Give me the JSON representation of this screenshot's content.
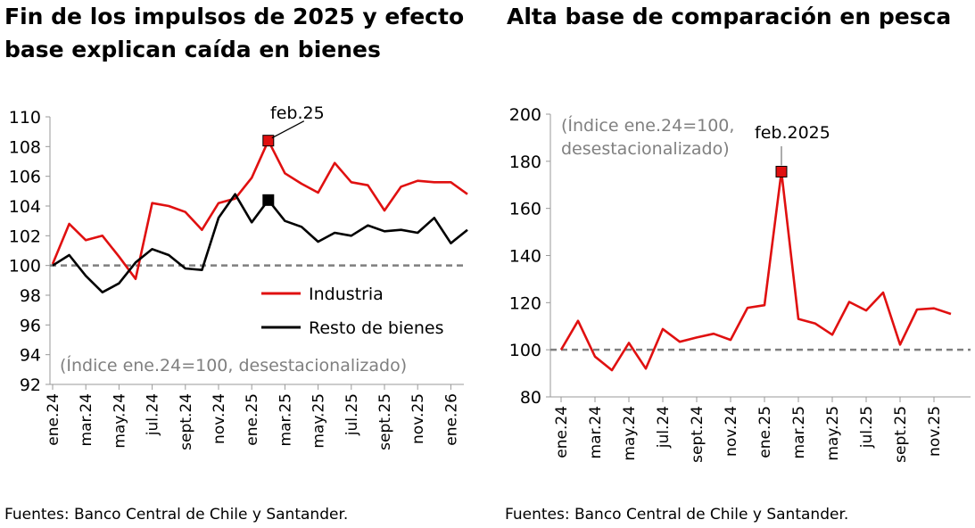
{
  "left": {
    "title": "Fin de los impulsos de 2025 y efecto base explican caída en bienes",
    "source": "Fuentes: Banco Central de Chile y Santander."
  },
  "right": {
    "title": "Alta base de comparación en pesca",
    "source": "Fuentes: Banco Central de Chile y Santander."
  },
  "chart_data": [
    {
      "type": "line",
      "title": "Fin de los impulsos de 2025 y efecto base explican caída en bienes",
      "note": "(Índice ene.24=100, desestacionalizado)",
      "ylim": [
        92,
        110
      ],
      "yticks": [
        92,
        94,
        96,
        98,
        100,
        102,
        104,
        106,
        108,
        110
      ],
      "x": [
        "ene.24",
        "feb.24",
        "mar.24",
        "abr.24",
        "may.24",
        "jun.24",
        "jul.24",
        "ago.24",
        "sept.24",
        "oct.24",
        "nov.24",
        "dic.24",
        "ene.25",
        "feb.25",
        "mar.25",
        "abr.25",
        "may.25",
        "jun.25",
        "jul.25",
        "ago.25",
        "sept.25",
        "oct.25",
        "nov.25",
        "dic.25",
        "ene.26",
        "feb.26"
      ],
      "xticklabels": [
        "ene.24",
        "mar.24",
        "may.24",
        "jul.24",
        "sept.24",
        "nov.24",
        "ene.25",
        "mar.25",
        "may.25",
        "jul.25",
        "sept.25",
        "nov.25",
        "ene.26"
      ],
      "reference": 100,
      "series": [
        {
          "name": "Industria",
          "color": "#e01010",
          "values": [
            100.1,
            102.8,
            101.7,
            102.0,
            100.6,
            99.1,
            104.2,
            104.0,
            103.6,
            102.4,
            104.2,
            104.5,
            105.9,
            108.4,
            106.2,
            105.5,
            104.9,
            106.9,
            105.6,
            105.4,
            103.7,
            105.3,
            105.7,
            105.6,
            105.6,
            104.8
          ]
        },
        {
          "name": "Resto de bienes",
          "color": "#000000",
          "values": [
            100.0,
            100.7,
            99.3,
            98.2,
            98.8,
            100.2,
            101.1,
            100.7,
            99.8,
            99.7,
            103.2,
            104.8,
            102.9,
            104.4,
            103.0,
            102.6,
            101.6,
            102.2,
            102.0,
            102.7,
            102.3,
            102.4,
            102.2,
            103.2,
            101.5,
            102.4
          ]
        }
      ],
      "annotation": {
        "label": "feb.25",
        "index": 13
      }
    },
    {
      "type": "line",
      "title": "Alta base de comparación en pesca",
      "note_lines": [
        "(Índice ene.24=100,",
        "desestacionalizado)"
      ],
      "ylim": [
        80,
        200
      ],
      "yticks": [
        80,
        100,
        120,
        140,
        160,
        180,
        200
      ],
      "x": [
        "ene.24",
        "feb.24",
        "mar.24",
        "abr.24",
        "may.24",
        "jun.24",
        "jul.24",
        "ago.24",
        "sept.24",
        "oct.24",
        "nov.24",
        "dic.24",
        "ene.25",
        "feb.25",
        "mar.25",
        "abr.25",
        "may.25",
        "jun.25",
        "jul.25",
        "ago.25",
        "sept.25",
        "oct.25",
        "nov.25",
        "dic.25"
      ],
      "xticklabels": [
        "ene.24",
        "mar.24",
        "may.24",
        "jul.24",
        "sept.24",
        "nov.24",
        "ene.25",
        "mar.25",
        "may.25",
        "jul.25",
        "sept.25",
        "nov.25"
      ],
      "reference": 100,
      "series": [
        {
          "name": "Pesca",
          "color": "#e01010",
          "values": [
            100,
            112.3,
            97.1,
            91.3,
            102.9,
            92.0,
            108.8,
            103.4,
            105.2,
            106.8,
            104.2,
            117.8,
            118.9,
            175.6,
            113.1,
            111.1,
            106.4,
            120.3,
            116.7,
            124.3,
            102.2,
            117.1,
            117.6,
            115.2
          ]
        }
      ],
      "annotation": {
        "label": "feb.2025",
        "index": 13
      }
    }
  ]
}
